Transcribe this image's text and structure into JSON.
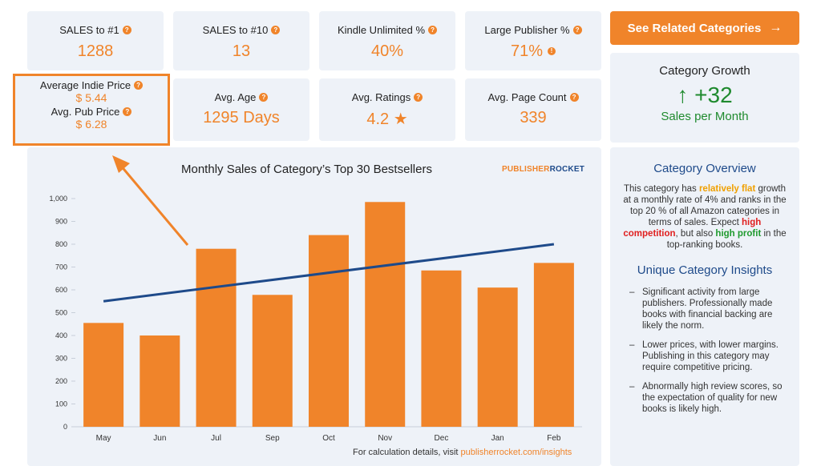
{
  "stats_row1": [
    {
      "label": "SALES to #1",
      "value": "1288"
    },
    {
      "label": "SALES to #10",
      "value": "13"
    },
    {
      "label": "Kindle Unlimited %",
      "value": "40%"
    },
    {
      "label": "Large Publisher %",
      "value": "71%"
    }
  ],
  "stats_row2": [
    {
      "label": "Avg. Age",
      "value": "1295 Days"
    },
    {
      "label": "Avg. Ratings",
      "value": "4.2 ★"
    },
    {
      "label": "Avg. Page Count",
      "value": "339"
    }
  ],
  "indie": {
    "indie_label": "Average Indie Price",
    "indie_value": "$ 5.44",
    "pub_label": "Avg. Pub Price",
    "pub_value": "$ 6.28"
  },
  "related_button": {
    "label": "See Related Categories",
    "arrow": "→"
  },
  "growth": {
    "title": "Category Growth",
    "value": "↑ +32",
    "sub": "Sales per Month"
  },
  "overview": {
    "title": "Category Overview",
    "p1": "This category has ",
    "flat": "relatively flat",
    "p2": " growth at a monthly rate of 4% and ranks in the top 20 % of all Amazon categories in terms of sales. Expect ",
    "competition": "high competition",
    "p3": ", but also ",
    "profit_a": "high",
    "profit_b": "profit",
    "p4": " in the top-ranking books."
  },
  "insights": {
    "title": "Unique Category Insights",
    "items": [
      "Significant activity from large publishers. Professionally made books with financial backing are likely the norm.",
      "Lower prices, with lower margins. Publishing in this category may require competitive pricing.",
      "Abnormally high review scores, so the expectation of quality for new books is likely high."
    ]
  },
  "chart_data": {
    "type": "bar",
    "title": "Monthly Sales of Category’s Top 30 Bestsellers",
    "categories": [
      "May",
      "Jun",
      "Jul",
      "Sep",
      "Oct",
      "Nov",
      "Dec",
      "Jan",
      "Feb"
    ],
    "values": [
      455,
      400,
      780,
      578,
      840,
      985,
      685,
      610,
      718
    ],
    "trend": {
      "start": 550,
      "end": 800
    },
    "ylim": [
      0,
      1000
    ],
    "yticks": [
      "0",
      "100",
      "200",
      "300",
      "400",
      "500",
      "600",
      "700",
      "800",
      "900",
      "1,000"
    ],
    "bar_color": "#f0842a",
    "trend_color": "#1e4a8a"
  },
  "brand": {
    "part1": "PUBLISHER",
    "part2": "ROCKET"
  },
  "footer": {
    "prefix": "For calculation details, visit ",
    "link": "publisherrocket.com/insights"
  }
}
